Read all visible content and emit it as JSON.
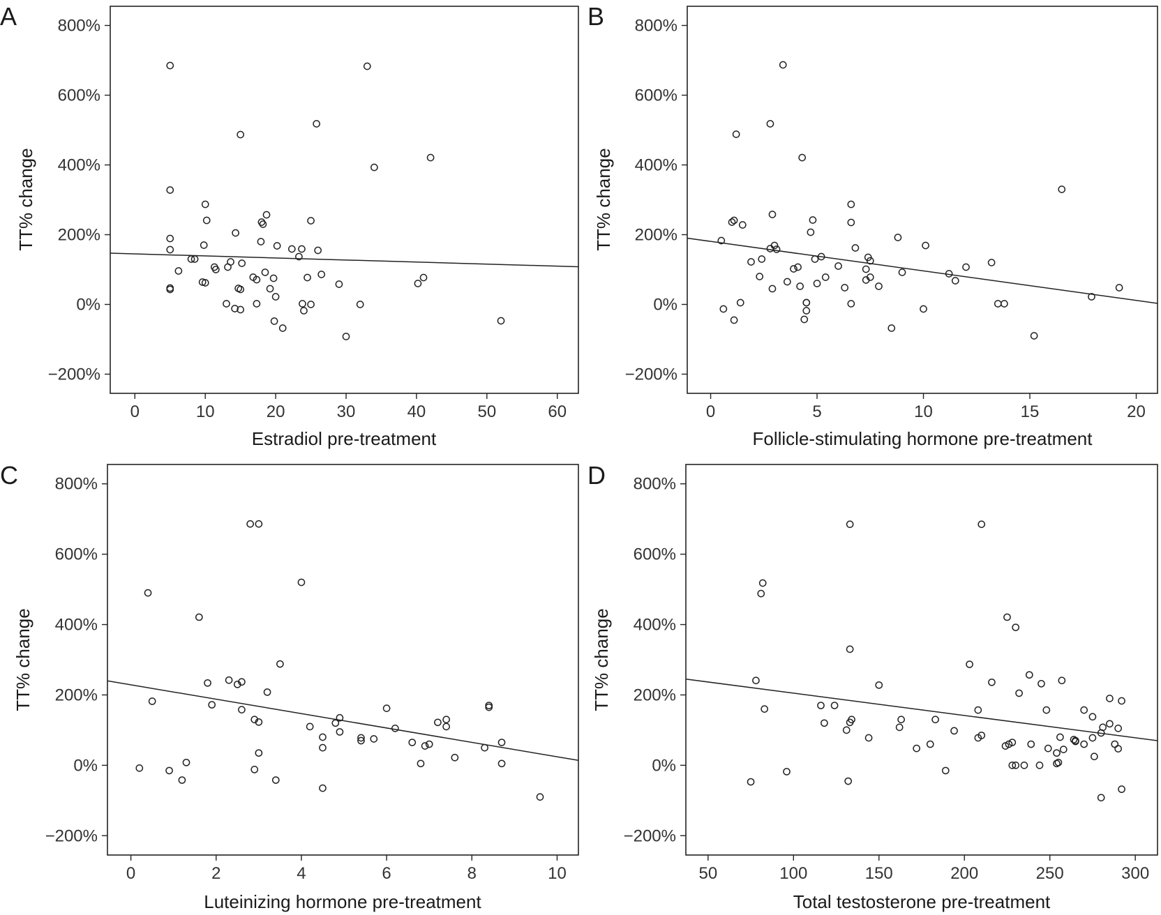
{
  "chart_data": [
    {
      "type": "scatter",
      "panel": "A",
      "xlabel": "Estradiol pre-treatment",
      "ylabel": "TT% change",
      "xlim": [
        -3.5,
        63
      ],
      "ylim": [
        -255,
        855
      ],
      "xticks": [
        0,
        10,
        20,
        30,
        40,
        50,
        60
      ],
      "yticks": [
        -200,
        0,
        200,
        400,
        600,
        800
      ],
      "ytick_labels": [
        "−200%",
        "0%",
        "200%",
        "400%",
        "600%",
        "800%"
      ],
      "grid": false,
      "fit_line": {
        "x": [
          -3.5,
          63
        ],
        "y": [
          147,
          108
        ]
      },
      "points": {
        "x": [
          5,
          33,
          25.8,
          15,
          34,
          42,
          5,
          10,
          5,
          10.2,
          18.7,
          18,
          18.2,
          14.3,
          5,
          9.8,
          25,
          17.9,
          8,
          8.5,
          20.2,
          22.3,
          23.7,
          26,
          23.3,
          13.6,
          11.3,
          11.5,
          15.2,
          13.2,
          6.2,
          18.5,
          26.5,
          24.5,
          16.8,
          17.3,
          19.7,
          41,
          10,
          9.6,
          5,
          29,
          5,
          19.2,
          40.2,
          14.7,
          15,
          20,
          23.8,
          17.3,
          13,
          25,
          32,
          14.2,
          15,
          24,
          19.8,
          21,
          30,
          52
        ],
        "y": [
          685,
          683,
          518,
          487,
          393,
          421,
          328,
          287,
          189,
          241,
          257,
          236,
          230,
          205,
          157,
          170,
          240,
          180,
          130,
          130,
          168,
          159,
          159,
          155,
          137,
          122,
          107,
          100,
          118,
          107,
          96,
          92,
          86,
          77,
          78,
          71,
          75,
          77,
          62,
          64,
          47,
          58,
          43,
          45,
          60,
          46,
          43,
          22,
          2,
          2,
          2,
          0,
          0,
          -12,
          -15,
          -18,
          -48,
          -68,
          -92,
          -47
        ]
      }
    },
    {
      "type": "scatter",
      "panel": "B",
      "xlabel": "Follicle-stimulating hormone pre-treatment",
      "ylabel": "TT% change",
      "xlim": [
        -1.1,
        21
      ],
      "ylim": [
        -255,
        855
      ],
      "xticks": [
        0,
        5,
        10,
        15,
        20
      ],
      "yticks": [
        -200,
        0,
        200,
        400,
        600,
        800
      ],
      "ytick_labels": [
        "−200%",
        "0%",
        "200%",
        "400%",
        "600%",
        "800%"
      ],
      "grid": false,
      "fit_line": {
        "x": [
          -1.1,
          21
        ],
        "y": [
          190,
          3
        ]
      },
      "points": {
        "x": [
          3.4,
          2.8,
          1.2,
          4.3,
          16.5,
          6.6,
          2.9,
          1.1,
          1,
          1.5,
          6.6,
          4.8,
          4.7,
          8.8,
          0.5,
          3,
          10.1,
          6.8,
          2.8,
          3.1,
          5.2,
          7.4,
          2.4,
          1.9,
          4.9,
          7.5,
          6,
          12,
          4.1,
          3.9,
          13.2,
          7.3,
          11.2,
          2.3,
          7.5,
          5.4,
          7.3,
          11.5,
          3.6,
          4.2,
          7.9,
          5,
          6.3,
          9,
          2.9,
          4.5,
          19.2,
          17.9,
          13.5,
          13.8,
          6.6,
          4.5,
          10,
          1.4,
          0.6,
          4.5,
          1.1,
          4.4,
          8.5,
          15.2
        ],
        "y": [
          687,
          518,
          488,
          421,
          330,
          287,
          258,
          241,
          236,
          228,
          235,
          242,
          207,
          192,
          183,
          169,
          169,
          162,
          160,
          158,
          137,
          135,
          130,
          122,
          130,
          125,
          110,
          107,
          107,
          102,
          120,
          101,
          88,
          80,
          78,
          78,
          70,
          68,
          65,
          52,
          52,
          60,
          48,
          92,
          45,
          5,
          48,
          22,
          2,
          2,
          2,
          5,
          -13,
          5,
          -13,
          -18,
          -45,
          -43,
          -68,
          -90
        ]
      }
    },
    {
      "type": "scatter",
      "panel": "C",
      "xlabel": "Luteinizing hormone pre-treatment",
      "ylabel": "TT% change",
      "xlim": [
        -0.55,
        10.5
      ],
      "ylim": [
        -255,
        855
      ],
      "xticks": [
        0,
        2,
        4,
        6,
        8,
        10
      ],
      "yticks": [
        -200,
        0,
        200,
        400,
        600,
        800
      ],
      "ytick_labels": [
        "−200%",
        "0%",
        "200%",
        "400%",
        "600%",
        "800%"
      ],
      "grid": false,
      "fit_line": {
        "x": [
          -0.55,
          10.5
        ],
        "y": [
          240,
          14
        ]
      },
      "points": {
        "x": [
          2.8,
          3,
          4,
          0.4,
          1.6,
          3.5,
          2.3,
          2.6,
          1.8,
          2.5,
          3.2,
          0.5,
          1.9,
          8.4,
          8.4,
          2.6,
          6,
          4.9,
          4.8,
          7.2,
          7.4,
          2.9,
          3,
          7.4,
          4.2,
          6.2,
          4.9,
          5.4,
          5.7,
          4.5,
          5.4,
          6.6,
          8.7,
          6.9,
          7,
          4.5,
          8.3,
          3,
          7.6,
          0.2,
          0.9,
          1.3,
          8.7,
          6.8,
          2.9,
          1.2,
          3.4,
          4.5,
          9.6
        ],
        "y": [
          686,
          686,
          520,
          490,
          421,
          288,
          242,
          237,
          234,
          230,
          208,
          182,
          172,
          170,
          165,
          158,
          162,
          135,
          120,
          122,
          130,
          130,
          123,
          110,
          110,
          105,
          95,
          78,
          75,
          80,
          70,
          65,
          65,
          55,
          60,
          50,
          50,
          35,
          22,
          -8,
          -15,
          8,
          5,
          5,
          -12,
          -42,
          -42,
          -65,
          -90
        ]
      }
    },
    {
      "type": "scatter",
      "panel": "D",
      "xlabel": "Total testosterone pre-treatment",
      "ylabel": "TT% change",
      "xlim": [
        37,
        313
      ],
      "ylim": [
        -255,
        855
      ],
      "xticks": [
        50,
        100,
        150,
        200,
        250,
        300
      ],
      "yticks": [
        -200,
        0,
        200,
        400,
        600,
        800
      ],
      "ytick_labels": [
        "−200%",
        "0%",
        "200%",
        "400%",
        "600%",
        "800%"
      ],
      "grid": false,
      "fit_line": {
        "x": [
          37,
          313
        ],
        "y": [
          245,
          70
        ]
      },
      "points": {
        "x": [
          133,
          210,
          82,
          81,
          225,
          230,
          133,
          203,
          238,
          78,
          150,
          245,
          216,
          257,
          232,
          285,
          292,
          83,
          116,
          124,
          208,
          248,
          270,
          275,
          163,
          118,
          134,
          162,
          183,
          285,
          290,
          281,
          194,
          228,
          280,
          133,
          144,
          172,
          180,
          264,
          275,
          288,
          256,
          224,
          254,
          265,
          290,
          255,
          258,
          210,
          239,
          226,
          270,
          276,
          265,
          249,
          131,
          208,
          230,
          228,
          235,
          244,
          254,
          189,
          96,
          75,
          132,
          292,
          280
        ],
        "y": [
          685,
          685,
          518,
          488,
          421,
          392,
          330,
          287,
          257,
          241,
          228,
          232,
          236,
          241,
          205,
          190,
          183,
          160,
          170,
          170,
          157,
          157,
          157,
          138,
          130,
          120,
          130,
          108,
          130,
          118,
          105,
          108,
          98,
          65,
          92,
          122,
          78,
          48,
          60,
          73,
          78,
          60,
          80,
          55,
          35,
          70,
          47,
          8,
          45,
          85,
          60,
          60,
          60,
          25,
          68,
          48,
          100,
          78,
          0,
          0,
          0,
          0,
          5,
          -15,
          -18,
          -47,
          -45,
          -68,
          -92
        ]
      }
    }
  ]
}
